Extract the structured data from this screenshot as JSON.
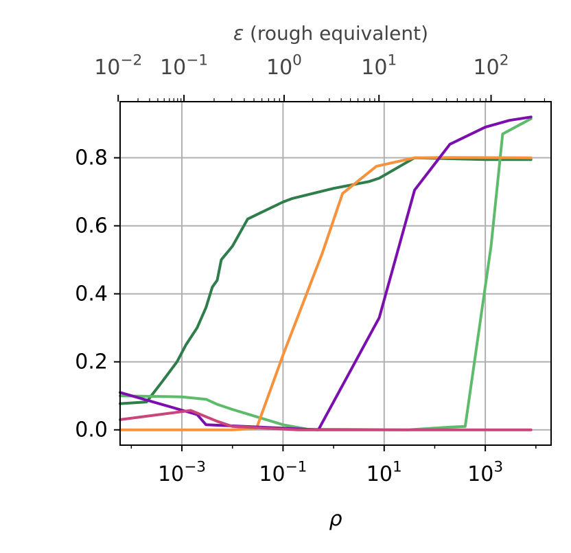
{
  "chart_data": {
    "type": "line",
    "xlabel": "ρ",
    "x_scale": "log",
    "xlim": [
      6e-05,
      20000
    ],
    "x_ticks": [
      {
        "value": 0.001,
        "base": "10",
        "exp": "−3"
      },
      {
        "value": 0.1,
        "base": "10",
        "exp": "−1"
      },
      {
        "value": 10,
        "base": "10",
        "exp": "1"
      },
      {
        "value": 1000,
        "base": "10",
        "exp": "3"
      }
    ],
    "top_axis": {
      "label_italic": "ε",
      "label": " (rough equivalent)",
      "ticks": [
        {
          "at_rho": 5.5e-05,
          "base": "10",
          "exp": "−2"
        },
        {
          "at_rho": 0.0011,
          "base": "10",
          "exp": "−1"
        },
        {
          "at_rho": 0.105,
          "base": "10",
          "exp": "0"
        },
        {
          "at_rho": 7.9,
          "base": "10",
          "exp": "1"
        },
        {
          "at_rho": 1300,
          "base": "10",
          "exp": "2"
        }
      ]
    },
    "ylabel": "",
    "ylim": [
      -0.045,
      0.965
    ],
    "y_ticks": [
      "0.0",
      "0.2",
      "0.4",
      "0.6",
      "0.8"
    ],
    "grid": true,
    "series": [
      {
        "color": "#2e7d4a",
        "points": [
          [
            6e-05,
            0.077
          ],
          [
            0.0002,
            0.082
          ],
          [
            0.0004,
            0.14
          ],
          [
            0.0008,
            0.2
          ],
          [
            0.0012,
            0.25
          ],
          [
            0.002,
            0.3
          ],
          [
            0.003,
            0.36
          ],
          [
            0.004,
            0.42
          ],
          [
            0.005,
            0.44
          ],
          [
            0.006,
            0.5
          ],
          [
            0.01,
            0.54
          ],
          [
            0.02,
            0.62
          ],
          [
            0.1,
            0.67
          ],
          [
            0.15,
            0.68
          ],
          [
            1,
            0.71
          ],
          [
            5,
            0.73
          ],
          [
            8,
            0.74
          ],
          [
            40,
            0.8
          ],
          [
            1000,
            0.795
          ],
          [
            8000,
            0.795
          ]
        ]
      },
      {
        "color": "#5fbb6c",
        "points": [
          [
            6e-05,
            0.1
          ],
          [
            0.001,
            0.097
          ],
          [
            0.003,
            0.09
          ],
          [
            0.005,
            0.075
          ],
          [
            0.01,
            0.06
          ],
          [
            0.1,
            0.015
          ],
          [
            0.3,
            0.002
          ],
          [
            30,
            0.0
          ],
          [
            200,
            0.008
          ],
          [
            400,
            0.01
          ],
          [
            1300,
            0.54
          ],
          [
            2200,
            0.87
          ],
          [
            8000,
            0.915
          ]
        ]
      },
      {
        "color": "#f5923b",
        "points": [
          [
            6e-05,
            0.0
          ],
          [
            0.01,
            0.0
          ],
          [
            0.03,
            0.005
          ],
          [
            0.1,
            0.22
          ],
          [
            0.6,
            0.52
          ],
          [
            1.5,
            0.695
          ],
          [
            7,
            0.775
          ],
          [
            40,
            0.8
          ],
          [
            200,
            0.801
          ],
          [
            8000,
            0.8
          ]
        ]
      },
      {
        "color": "#7a0fae",
        "points": [
          [
            6e-05,
            0.11
          ],
          [
            0.002,
            0.045
          ],
          [
            0.003,
            0.015
          ],
          [
            0.1,
            0.005
          ],
          [
            0.5,
            0.0
          ],
          [
            8,
            0.33
          ],
          [
            40,
            0.705
          ],
          [
            200,
            0.84
          ],
          [
            1000,
            0.89
          ],
          [
            3000,
            0.91
          ],
          [
            8000,
            0.92
          ]
        ]
      },
      {
        "color": "#c9457a",
        "points": [
          [
            6e-05,
            0.03
          ],
          [
            0.0015,
            0.057
          ],
          [
            0.005,
            0.025
          ],
          [
            0.01,
            0.01
          ],
          [
            0.2,
            0.0
          ],
          [
            8000,
            0.0
          ]
        ]
      }
    ]
  }
}
